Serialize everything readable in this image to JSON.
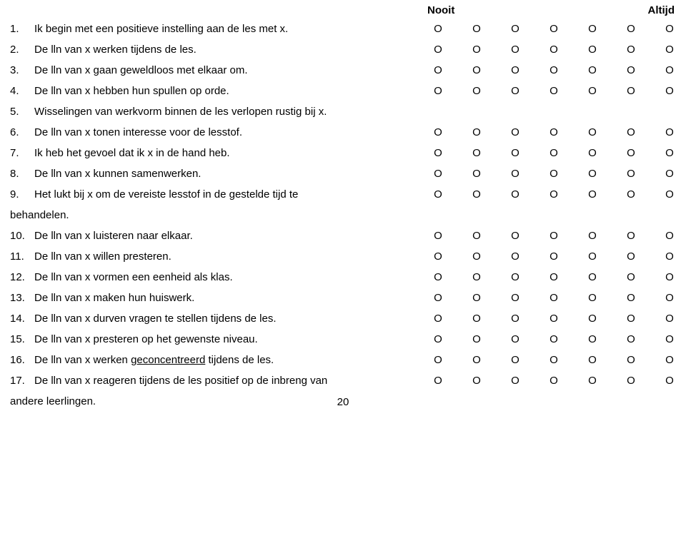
{
  "header": {
    "left": "Nooit",
    "right": "Altijd"
  },
  "circle": "O",
  "page_number": "20",
  "items": [
    {
      "num": "1.",
      "text": "Ik begin met een positieve instelling aan de les met x."
    },
    {
      "num": "2.",
      "text": "De lln van x werken tijdens de les."
    },
    {
      "num": "3.",
      "text": "De lln van x gaan geweldloos met elkaar om."
    },
    {
      "num": "4.",
      "text": "De lln van x hebben hun spullen op orde."
    },
    {
      "num": "5.",
      "text": "Wisselingen van werkvorm binnen de les verlopen rustig bij x.",
      "no_circles": true
    },
    {
      "num": "6.",
      "text": "De lln van x tonen interesse voor de lesstof."
    },
    {
      "num": "7.",
      "text": "Ik heb het gevoel dat ik x in de hand heb."
    },
    {
      "num": "8.",
      "text": "De lln van x kunnen samenwerken."
    },
    {
      "num": "9.",
      "text": "Het lukt bij x om de vereiste lesstof in de gestelde tijd te"
    },
    {
      "num": "",
      "text": "behandelen.",
      "continuation": true,
      "no_circles": true,
      "no_indent": true
    },
    {
      "num": "10.",
      "text": "De lln van x luisteren naar elkaar."
    },
    {
      "num": "11.",
      "text": "De lln van x willen presteren."
    },
    {
      "num": "12.",
      "text": "De lln van x vormen een eenheid als klas."
    },
    {
      "num": "13.",
      "text": "De lln van x maken hun huiswerk."
    },
    {
      "num": "14.",
      "text": "De lln van x durven vragen te stellen tijdens de les."
    },
    {
      "num": "15.",
      "text": "De lln van x presteren op het gewenste niveau."
    },
    {
      "num": "16.",
      "text_parts": [
        "De lln van x werken ",
        {
          "u": "geconcentreerd"
        },
        " tijdens de les."
      ]
    },
    {
      "num": "17.",
      "text": "De lln van x reageren tijdens de les positief op de inbreng van"
    },
    {
      "num": "",
      "text": "andere leerlingen.",
      "continuation": true,
      "no_circles": true,
      "no_indent": true
    }
  ]
}
